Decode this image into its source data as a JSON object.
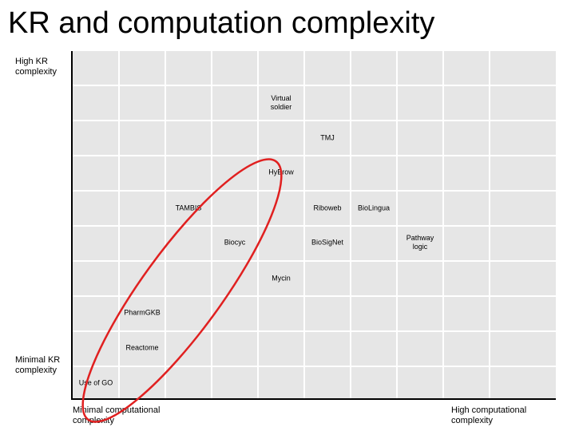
{
  "title": "KR and computation complexity",
  "y_axis": {
    "high_label": "High KR complexity",
    "low_label": "Minimal KR complexity"
  },
  "x_axis": {
    "low_label": "Minimal computational complexity",
    "high_label": "High computational complexity"
  },
  "items": [
    {
      "key": "virtual_soldier",
      "line1": "Virtual",
      "line2": "soldier"
    },
    {
      "key": "tmj",
      "line1": "TMJ",
      "line2": ""
    },
    {
      "key": "hybrow",
      "line1": "HyBrow",
      "line2": ""
    },
    {
      "key": "tambis",
      "line1": "TAMBIS",
      "line2": ""
    },
    {
      "key": "riboweb",
      "line1": "Riboweb",
      "line2": ""
    },
    {
      "key": "biolingua",
      "line1": "BioLingua",
      "line2": ""
    },
    {
      "key": "biocyc",
      "line1": "Biocyc",
      "line2": ""
    },
    {
      "key": "biosignet",
      "line1": "BioSigNet",
      "line2": ""
    },
    {
      "key": "pathway_logic",
      "line1": "Pathway",
      "line2": "logic"
    },
    {
      "key": "mycin",
      "line1": "Mycin",
      "line2": ""
    },
    {
      "key": "pharmgkb",
      "line1": "PharmGKB",
      "line2": ""
    },
    {
      "key": "reactome",
      "line1": "Reactome",
      "line2": ""
    },
    {
      "key": "use_of_go",
      "line1": "Use of GO",
      "line2": ""
    }
  ],
  "highlight_color": "#e02020",
  "grid_color": "#e6e6e6"
}
